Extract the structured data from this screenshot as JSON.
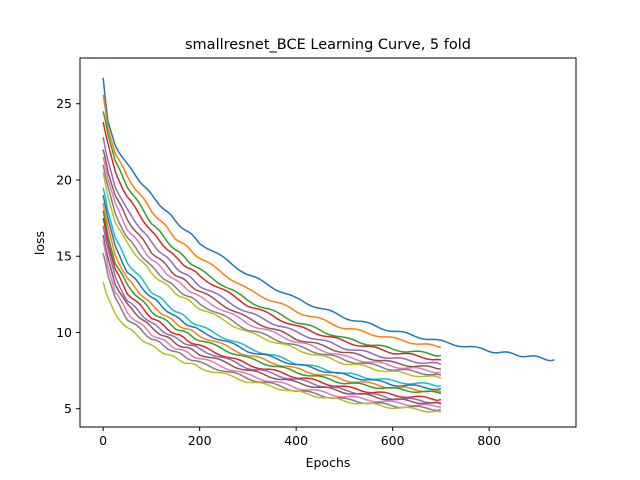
{
  "chart_data": {
    "type": "line",
    "title": "smallresnet_BCE Learning Curve, 5 fold",
    "xlabel": "Epochs",
    "ylabel": "loss",
    "xlim": [
      -48,
      980
    ],
    "ylim": [
      3.8,
      28.0
    ],
    "xticks": [
      0,
      200,
      400,
      600,
      800
    ],
    "yticks": [
      5,
      10,
      15,
      20,
      25
    ],
    "grid": false,
    "legend": "none",
    "palette": [
      "#1f77b4",
      "#ff7f0e",
      "#2ca02c",
      "#d62728",
      "#9467bd",
      "#8c564b",
      "#e377c2",
      "#7f7f7f",
      "#bcbd22",
      "#17becf"
    ],
    "series": [
      {
        "color": "#1f77b4",
        "x": [
          0,
          10,
          25,
          50,
          100,
          150,
          200,
          300,
          400,
          500,
          600,
          700,
          800,
          935
        ],
        "y": [
          26.7,
          23.8,
          22.3,
          21.0,
          19.0,
          17.3,
          15.9,
          13.8,
          12.2,
          11.0,
          10.1,
          9.4,
          8.8,
          8.2
        ]
      },
      {
        "color": "#ff7f0e",
        "x": [
          0,
          10,
          25,
          50,
          100,
          150,
          200,
          300,
          400,
          500,
          600,
          700
        ],
        "y": [
          25.6,
          23.5,
          21.8,
          20.2,
          18.0,
          16.2,
          14.9,
          12.8,
          11.4,
          10.3,
          9.6,
          9.0
        ]
      },
      {
        "color": "#2ca02c",
        "x": [
          0,
          10,
          25,
          50,
          100,
          150,
          200,
          300,
          400,
          500,
          600,
          700
        ],
        "y": [
          24.5,
          23.0,
          21.2,
          19.6,
          17.2,
          15.4,
          14.1,
          12.1,
          10.7,
          9.6,
          8.9,
          8.5
        ]
      },
      {
        "color": "#d62728",
        "x": [
          0,
          10,
          25,
          50,
          100,
          150,
          200,
          300,
          400,
          500,
          600,
          700
        ],
        "y": [
          23.8,
          22.3,
          20.5,
          18.9,
          16.6,
          14.9,
          13.7,
          11.8,
          10.4,
          9.4,
          8.7,
          8.2
        ]
      },
      {
        "color": "#9467bd",
        "x": [
          0,
          10,
          25,
          50,
          100,
          150,
          200,
          300,
          400,
          500,
          600,
          700
        ],
        "y": [
          22.8,
          21.3,
          19.6,
          18.0,
          15.9,
          14.3,
          13.1,
          11.3,
          10.0,
          9.0,
          8.3,
          7.9
        ]
      },
      {
        "color": "#8c564b",
        "x": [
          0,
          10,
          25,
          50,
          100,
          150,
          200,
          300,
          400,
          500,
          600,
          700
        ],
        "y": [
          22.0,
          20.6,
          19.0,
          17.4,
          15.3,
          13.8,
          12.7,
          10.9,
          9.6,
          8.7,
          8.0,
          7.6
        ]
      },
      {
        "color": "#e377c2",
        "x": [
          0,
          10,
          25,
          50,
          100,
          150,
          200,
          300,
          400,
          500,
          600,
          700
        ],
        "y": [
          21.5,
          20.0,
          18.4,
          16.8,
          14.8,
          13.4,
          12.3,
          10.6,
          9.4,
          8.4,
          7.8,
          7.4
        ]
      },
      {
        "color": "#7f7f7f",
        "x": [
          0,
          10,
          25,
          50,
          100,
          150,
          200,
          300,
          400,
          500,
          600,
          700
        ],
        "y": [
          21.0,
          19.5,
          17.8,
          16.2,
          14.3,
          12.9,
          11.9,
          10.2,
          9.1,
          8.2,
          7.6,
          7.2
        ]
      },
      {
        "color": "#bcbd22",
        "x": [
          0,
          10,
          25,
          50,
          100,
          150,
          200,
          300,
          400,
          500,
          600,
          700
        ],
        "y": [
          20.5,
          19.0,
          17.3,
          15.8,
          13.9,
          12.6,
          11.6,
          10.0,
          8.9,
          8.0,
          7.4,
          7.0
        ]
      },
      {
        "color": "#17becf",
        "x": [
          0,
          10,
          25,
          50,
          100,
          150,
          200,
          300,
          400,
          500,
          600,
          700
        ],
        "y": [
          19.5,
          18.0,
          16.2,
          14.6,
          12.7,
          11.4,
          10.4,
          9.0,
          8.0,
          7.3,
          6.8,
          6.5
        ]
      },
      {
        "color": "#1f77b4",
        "x": [
          0,
          10,
          25,
          50,
          100,
          150,
          200,
          300,
          400,
          500,
          600,
          700
        ],
        "y": [
          19.0,
          17.4,
          15.6,
          14.0,
          12.3,
          11.0,
          10.1,
          8.8,
          7.9,
          7.2,
          6.6,
          6.3
        ]
      },
      {
        "color": "#ff7f0e",
        "x": [
          0,
          10,
          25,
          50,
          100,
          150,
          200,
          300,
          400,
          500,
          600,
          700
        ],
        "y": [
          18.5,
          16.9,
          15.1,
          13.5,
          11.8,
          10.6,
          9.8,
          8.5,
          7.6,
          6.9,
          6.4,
          6.1
        ]
      },
      {
        "color": "#2ca02c",
        "x": [
          0,
          10,
          25,
          50,
          100,
          150,
          200,
          300,
          400,
          500,
          600,
          700
        ],
        "y": [
          18.0,
          16.4,
          14.6,
          13.1,
          11.4,
          10.3,
          9.5,
          8.3,
          7.4,
          6.7,
          6.3,
          6.0
        ]
      },
      {
        "color": "#d62728",
        "x": [
          0,
          10,
          25,
          50,
          100,
          150,
          200,
          300,
          400,
          500,
          600,
          700
        ],
        "y": [
          17.5,
          15.9,
          14.1,
          12.6,
          11.0,
          9.9,
          9.1,
          7.9,
          7.1,
          6.4,
          5.9,
          5.6
        ]
      },
      {
        "color": "#9467bd",
        "x": [
          0,
          10,
          25,
          50,
          100,
          150,
          200,
          300,
          400,
          500,
          600,
          700
        ],
        "y": [
          17.0,
          15.4,
          13.6,
          12.1,
          10.6,
          9.6,
          8.9,
          7.7,
          6.9,
          6.2,
          5.7,
          5.4
        ]
      },
      {
        "color": "#8c564b",
        "x": [
          0,
          10,
          25,
          50,
          100,
          150,
          200,
          300,
          400,
          500,
          600,
          700
        ],
        "y": [
          16.4,
          14.9,
          13.2,
          11.8,
          10.3,
          9.3,
          8.6,
          7.5,
          6.7,
          6.1,
          5.6,
          5.3
        ]
      },
      {
        "color": "#e377c2",
        "x": [
          0,
          10,
          25,
          50,
          100,
          150,
          200,
          300,
          400,
          500,
          600,
          700
        ],
        "y": [
          16.0,
          14.4,
          12.7,
          11.3,
          9.9,
          9.0,
          8.3,
          7.2,
          6.4,
          5.8,
          5.4,
          5.1
        ]
      },
      {
        "color": "#7f7f7f",
        "x": [
          0,
          10,
          25,
          50,
          100,
          150,
          200,
          300,
          400,
          500,
          600,
          700
        ],
        "y": [
          15.2,
          13.7,
          12.2,
          10.9,
          9.6,
          8.7,
          8.0,
          7.0,
          6.2,
          5.6,
          5.2,
          4.95
        ]
      },
      {
        "color": "#bcbd22",
        "x": [
          0,
          10,
          25,
          50,
          100,
          150,
          200,
          300,
          400,
          500,
          600,
          700
        ],
        "y": [
          13.3,
          12.2,
          11.2,
          10.3,
          9.1,
          8.3,
          7.7,
          6.8,
          6.1,
          5.5,
          5.1,
          4.8
        ]
      }
    ]
  }
}
